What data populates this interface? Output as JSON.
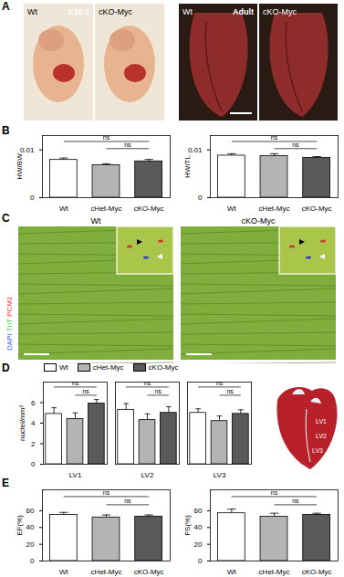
{
  "chart_data": [
    {
      "panel": "B",
      "type": "bar",
      "y_label": "HW/BW",
      "categories": [
        "Wt",
        "cHet-Myc",
        "cKO-Myc"
      ],
      "values": [
        0.0079,
        0.0068,
        0.0076
      ],
      "errors": [
        0.0004,
        0.0003,
        0.0004
      ],
      "colors": [
        "#ffffff",
        "#b4b4b4",
        "#5a5a5a"
      ],
      "ylim": [
        0,
        0.013
      ],
      "yticks": [
        0,
        0.01
      ],
      "annotations": [
        {
          "text": "ns",
          "from": "cHet-Myc",
          "to": "cKO-Myc"
        },
        {
          "text": "ns",
          "from": "Wt",
          "to": "cKO-Myc"
        }
      ]
    },
    {
      "type": "bar",
      "y_label": "HW/TL",
      "categories": [
        "Wt",
        "cHet-Myc",
        "cKO-Myc"
      ],
      "values": [
        0.0088,
        0.0087,
        0.0083
      ],
      "errors": [
        0.0004,
        0.0005,
        0.0003
      ],
      "colors": [
        "#ffffff",
        "#b4b4b4",
        "#5a5a5a"
      ],
      "ylim": [
        0,
        0.013
      ],
      "yticks": [
        0,
        0.01
      ],
      "annotations": [
        {
          "text": "ns",
          "from": "cHet-Myc",
          "to": "cKO-Myc"
        },
        {
          "text": "ns",
          "from": "Wt",
          "to": "cKO-Myc"
        }
      ]
    },
    {
      "panel": "D",
      "type": "bar",
      "y_label": "nuclei/mm²",
      "categories": [
        "LV1",
        "LV2",
        "LV3"
      ],
      "series": [
        {
          "name": "Wt",
          "color": "#ffffff",
          "values": [
            4.9,
            5.3,
            5.0
          ],
          "errors": [
            0.6,
            0.6,
            0.4
          ]
        },
        {
          "name": "cHet-Myc",
          "color": "#b4b4b4",
          "values": [
            4.4,
            4.3,
            4.2
          ],
          "errors": [
            0.6,
            0.6,
            0.5
          ]
        },
        {
          "name": "cKO-Myc",
          "color": "#5a5a5a",
          "values": [
            5.9,
            5.0,
            4.9
          ],
          "errors": [
            0.4,
            0.6,
            0.4
          ]
        }
      ],
      "ylim": [
        0,
        8
      ],
      "yticks": [
        0,
        2,
        4,
        6
      ],
      "legend": "top",
      "annotations": [
        {
          "group": "LV1",
          "text": "ns",
          "from": "cHet-Myc",
          "to": "cKO-Myc"
        },
        {
          "group": "LV1",
          "text": "ns",
          "from": "Wt",
          "to": "cKO-Myc"
        },
        {
          "group": "LV2",
          "text": "ns",
          "from": "cHet-Myc",
          "to": "cKO-Myc"
        },
        {
          "group": "LV2",
          "text": "ns",
          "from": "Wt",
          "to": "cKO-Myc"
        },
        {
          "group": "LV3",
          "text": "ns",
          "from": "cHet-Myc",
          "to": "cKO-Myc"
        },
        {
          "group": "LV3",
          "text": "ns",
          "from": "Wt",
          "to": "cKO-Myc"
        }
      ]
    },
    {
      "panel": "E",
      "type": "bar",
      "y_label": "EF(%)",
      "categories": [
        "Wt",
        "cHet-Myc",
        "cKO-Myc"
      ],
      "values": [
        55,
        52,
        53
      ],
      "errors": [
        3,
        3,
        2
      ],
      "colors": [
        "#ffffff",
        "#b4b4b4",
        "#5a5a5a"
      ],
      "ylim": [
        0,
        85
      ],
      "yticks": [
        0,
        20,
        40,
        60
      ],
      "annotations": [
        {
          "text": "ns",
          "from": "cHet-Myc",
          "to": "cKO-Myc"
        },
        {
          "text": "ns",
          "from": "Wt",
          "to": "cKO-Myc"
        }
      ]
    },
    {
      "type": "bar",
      "y_label": "FS(%)",
      "categories": [
        "Wt",
        "cHet-Myc",
        "cKO-Myc"
      ],
      "values": [
        57,
        53,
        55
      ],
      "errors": [
        5,
        4,
        2
      ],
      "colors": [
        "#ffffff",
        "#b4b4b4",
        "#5a5a5a"
      ],
      "ylim": [
        0,
        85
      ],
      "yticks": [
        0,
        20,
        40,
        60
      ],
      "annotations": [
        {
          "text": "ns",
          "from": "cHet-Myc",
          "to": "cKO-Myc"
        },
        {
          "text": "ns",
          "from": "Wt",
          "to": "cKO-Myc"
        }
      ]
    }
  ],
  "image_panels": [
    {
      "panel": "A",
      "images": [
        {
          "label": "Wt",
          "sublabel": "E10.5"
        },
        {
          "label": "cKO-Myc"
        },
        {
          "label": "Wt",
          "sublabel": "Adult"
        },
        {
          "label": "cKO-Myc"
        }
      ]
    },
    {
      "panel": "C",
      "stain_labels": [
        {
          "text": "DAPI",
          "color": "#3355ff"
        },
        {
          "text": "TnT",
          "color": "#33cc33"
        },
        {
          "text": "PCM1",
          "color": "#ff3333"
        }
      ],
      "images": [
        {
          "label": "Wt"
        },
        {
          "label": "cKO-Myc"
        }
      ]
    }
  ],
  "diagram": {
    "labels": [
      "LV1",
      "LV2",
      "LV3"
    ]
  }
}
